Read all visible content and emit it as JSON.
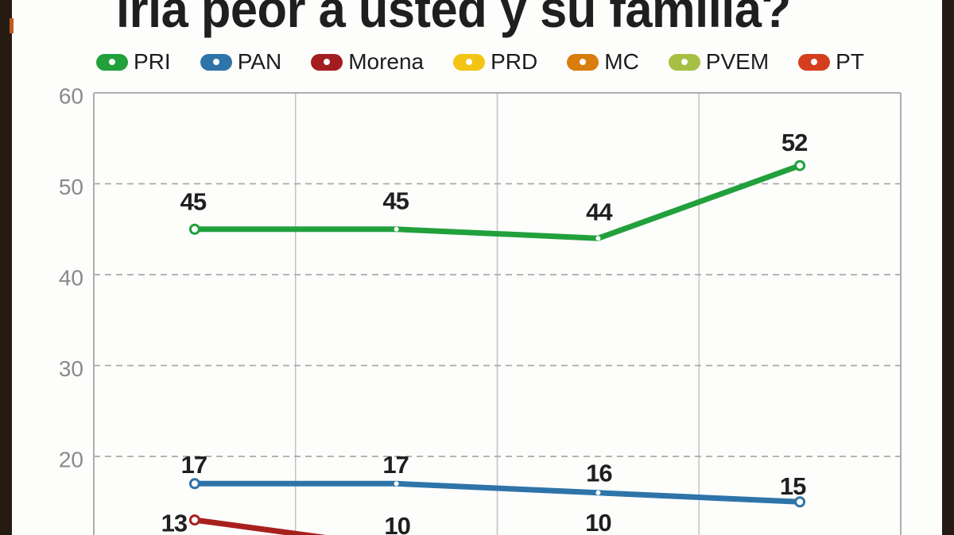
{
  "chart_data": {
    "type": "line",
    "title": "iría peor a usted y su familia?",
    "xlabel": "",
    "ylabel": "",
    "categories": [
      "",
      "",
      "",
      ""
    ],
    "yticks": [
      60,
      50,
      40,
      30,
      20
    ],
    "ylim": [
      10,
      60
    ],
    "grid": true,
    "legend_position": "top",
    "series": [
      {
        "name": "PRI",
        "color": "#21a03c",
        "values": [
          45,
          45,
          44,
          52
        ]
      },
      {
        "name": "PAN",
        "color": "#2e74a9",
        "values": [
          17,
          17,
          16,
          15
        ]
      },
      {
        "name": "Morena",
        "color": "#a8201d",
        "values": [
          13,
          10,
          10,
          null
        ]
      }
    ]
  },
  "legend": [
    {
      "label": "PRI",
      "color": "#21a03c"
    },
    {
      "label": "PAN",
      "color": "#2e74a9"
    },
    {
      "label": "Morena",
      "color": "#a31d20"
    },
    {
      "label": "PRD",
      "color": "#f3c413"
    },
    {
      "label": "MC",
      "color": "#d97d0f"
    },
    {
      "label": "PVEM",
      "color": "#a6bf45"
    },
    {
      "label": "PT",
      "color": "#d43f1e"
    }
  ],
  "frame": {
    "bar_color": "#251b13",
    "accent_color": "#c25a1e"
  },
  "axis": {
    "tick_color": "#8a8a8a",
    "grid_color": "#a9a9a9",
    "border_color": "#adadad",
    "value_label_color": "#211e1f"
  }
}
